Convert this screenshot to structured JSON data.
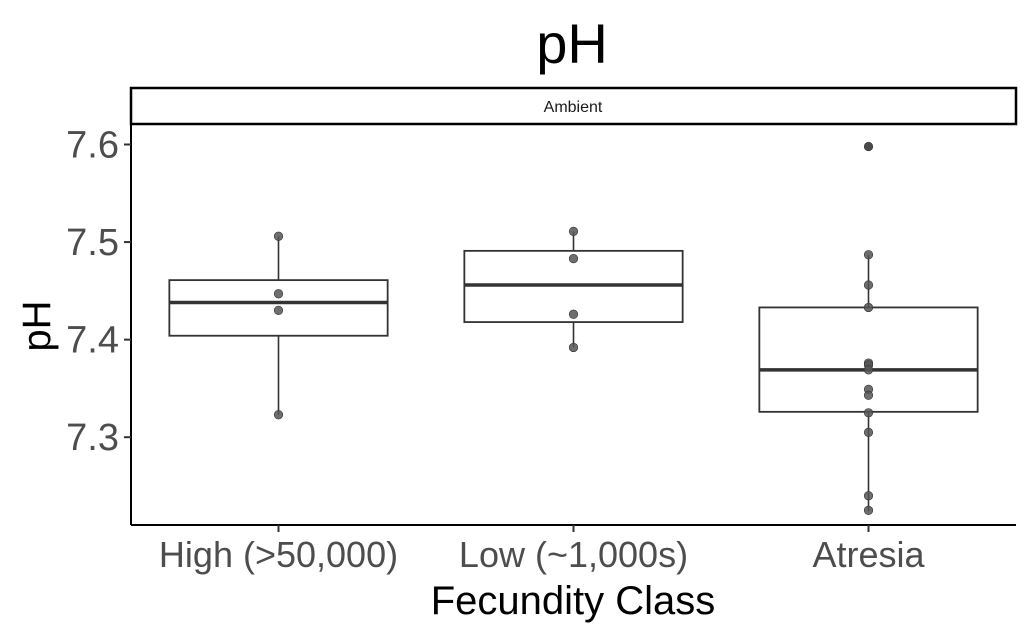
{
  "chart_data": {
    "type": "boxplot",
    "title": "pH",
    "xlabel": "Fecundity Class",
    "ylabel": "pH",
    "facet": "Ambient",
    "ylim": [
      7.21,
      7.62
    ],
    "yticks": [
      "7.3",
      "7.4",
      "7.5",
      "7.6"
    ],
    "grid": false,
    "categories": [
      "High (>50,000)",
      "Low (~1,000s)",
      "Atresia"
    ],
    "boxes": [
      {
        "category": "High (>50,000)",
        "min": 7.323,
        "q1": 7.404,
        "median": 7.438,
        "q3": 7.461,
        "max": 7.506
      },
      {
        "category": "Low (~1,000s)",
        "min": 7.392,
        "q1": 7.418,
        "median": 7.456,
        "q3": 7.491,
        "max": 7.511
      },
      {
        "category": "Atresia",
        "min": 7.224,
        "q1": 7.326,
        "median": 7.369,
        "q3": 7.433,
        "max": 7.487
      }
    ],
    "outliers": [
      {
        "category": "Atresia",
        "y": 7.598
      }
    ],
    "points": [
      {
        "category": "High (>50,000)",
        "y": [
          7.506,
          7.447,
          7.43,
          7.323
        ]
      },
      {
        "category": "Low (~1,000s)",
        "y": [
          7.511,
          7.483,
          7.426,
          7.392
        ]
      },
      {
        "category": "Atresia",
        "y": [
          7.598,
          7.487,
          7.456,
          7.433,
          7.376,
          7.374,
          7.369,
          7.349,
          7.343,
          7.325,
          7.305,
          7.24,
          7.225
        ]
      }
    ],
    "colors": {
      "box": "#333333",
      "point": "#555555",
      "axis": "#000000"
    }
  }
}
